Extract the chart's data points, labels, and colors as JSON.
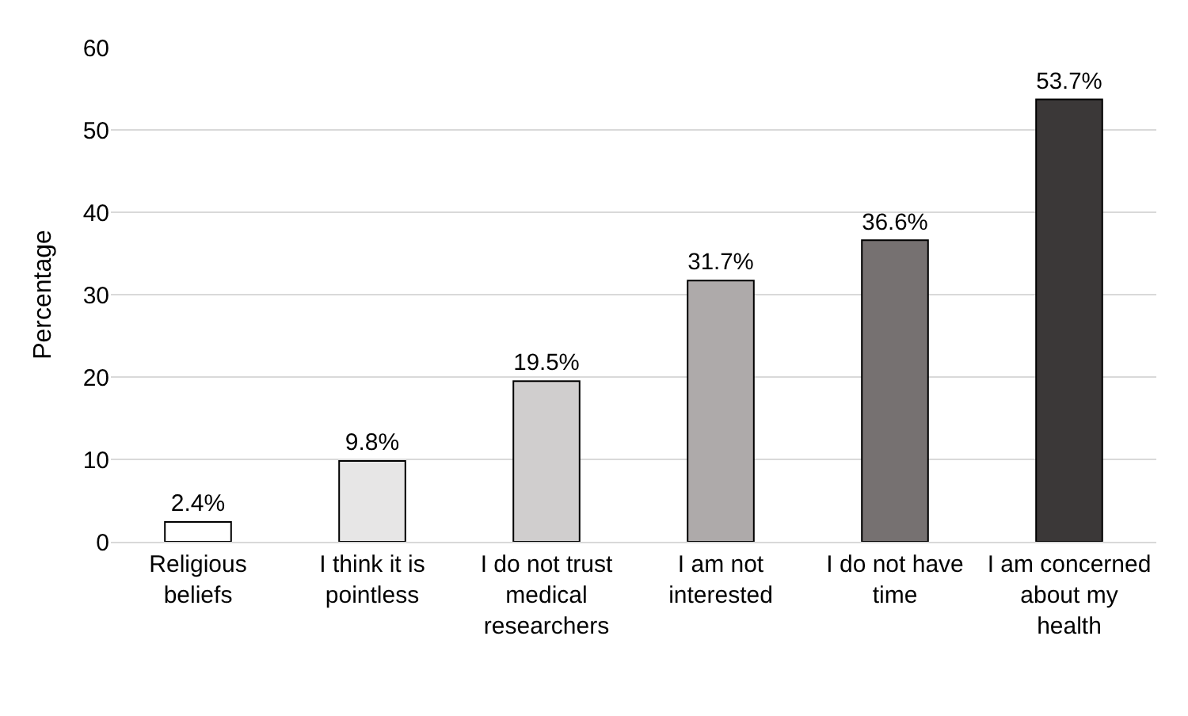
{
  "chart_data": {
    "type": "bar",
    "ylabel": "Percentage",
    "categories": [
      "Religious beliefs",
      "I think it is pointless",
      "I do not trust medical researchers",
      "I am not interested",
      "I do not have time",
      "I am concerned about my health"
    ],
    "values": [
      2.4,
      9.8,
      19.5,
      31.7,
      36.6,
      53.7
    ],
    "colors": [
      "#ffffff",
      "#e7e6e6",
      "#d0cece",
      "#aeaaaa",
      "#767171",
      "#3b3838"
    ],
    "value_labels": [
      "2.4%",
      "9.8%",
      "19.5%",
      "31.7%",
      "36.6%",
      "53.7%"
    ],
    "ylim": [
      0,
      60
    ],
    "yticks": [
      0,
      10,
      20,
      30,
      40,
      50,
      60
    ],
    "grid": "y",
    "legend": false
  }
}
